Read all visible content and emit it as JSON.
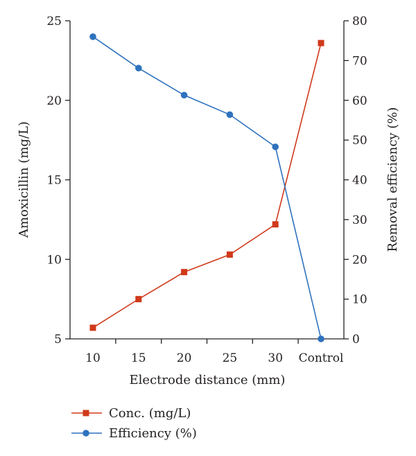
{
  "chart_data": {
    "type": "line",
    "title": "",
    "categories": [
      "10",
      "15",
      "20",
      "25",
      "30",
      "Control"
    ],
    "xlabel": "Electrode distance (mm)",
    "ylabel": "Amoxicillin (mg/L)",
    "y2label": "Removal efficiency (%)",
    "ylim": [
      5,
      25
    ],
    "y2lim": [
      0,
      80
    ],
    "yticks": [
      "5",
      "10",
      "15",
      "20",
      "25"
    ],
    "y2ticks": [
      "0",
      "10",
      "20",
      "30",
      "40",
      "50",
      "60",
      "70",
      "80"
    ],
    "grid": false,
    "legend_position": "bottom-left",
    "series": [
      {
        "name": "Conc. (mg/L)",
        "axis": "left",
        "marker": "square",
        "color": "#d0391a",
        "values": [
          5.7,
          7.5,
          9.2,
          10.3,
          12.2,
          23.6
        ]
      },
      {
        "name": "Efficiency (%)",
        "axis": "right",
        "marker": "circle",
        "color": "#2e72bd",
        "values": [
          76,
          68.1,
          61.3,
          56.4,
          48.3,
          0
        ]
      }
    ]
  }
}
